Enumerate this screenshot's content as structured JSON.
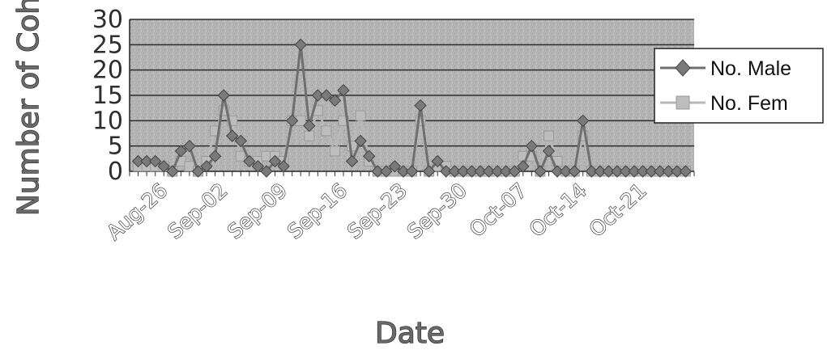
{
  "chart_data": {
    "type": "line",
    "xlabel": "Date",
    "ylabel": "Number of Coho",
    "ylim": [
      0,
      30
    ],
    "yticks": [
      "0",
      "5",
      "10",
      "15",
      "20",
      "25",
      "30"
    ],
    "xlim": [
      "2023-08-22",
      "2023-10-27"
    ],
    "xtick_labels": [
      {
        "date": "2023-08-26",
        "label": "Aug-26"
      },
      {
        "date": "2023-09-02",
        "label": "Sep-02"
      },
      {
        "date": "2023-09-09",
        "label": "Sep-09"
      },
      {
        "date": "2023-09-16",
        "label": "Sep-16"
      },
      {
        "date": "2023-09-23",
        "label": "Sep-23"
      },
      {
        "date": "2023-09-30",
        "label": "Sep-30"
      },
      {
        "date": "2023-10-07",
        "label": "Oct-07"
      },
      {
        "date": "2023-10-14",
        "label": "Oct-14"
      },
      {
        "date": "2023-10-21",
        "label": "Oct-21"
      }
    ],
    "grid": true,
    "legend_position": "right",
    "x": [
      "2023-08-23",
      "2023-08-24",
      "2023-08-25",
      "2023-08-26",
      "2023-08-27",
      "2023-08-28",
      "2023-08-29",
      "2023-08-30",
      "2023-08-31",
      "2023-09-01",
      "2023-09-02",
      "2023-09-03",
      "2023-09-04",
      "2023-09-05",
      "2023-09-06",
      "2023-09-07",
      "2023-09-08",
      "2023-09-09",
      "2023-09-10",
      "2023-09-11",
      "2023-09-12",
      "2023-09-13",
      "2023-09-14",
      "2023-09-15",
      "2023-09-16",
      "2023-09-17",
      "2023-09-18",
      "2023-09-19",
      "2023-09-20",
      "2023-09-21",
      "2023-09-22",
      "2023-09-23",
      "2023-09-24",
      "2023-09-25",
      "2023-09-26",
      "2023-09-27",
      "2023-09-28",
      "2023-09-29",
      "2023-09-30",
      "2023-10-01",
      "2023-10-02",
      "2023-10-03",
      "2023-10-04",
      "2023-10-05",
      "2023-10-06",
      "2023-10-07",
      "2023-10-08",
      "2023-10-09",
      "2023-10-10",
      "2023-10-11",
      "2023-10-12",
      "2023-10-13",
      "2023-10-14",
      "2023-10-15",
      "2023-10-16",
      "2023-10-17",
      "2023-10-18",
      "2023-10-19",
      "2023-10-20",
      "2023-10-21",
      "2023-10-22",
      "2023-10-23",
      "2023-10-24",
      "2023-10-25",
      "2023-10-26"
    ],
    "series": [
      {
        "name": "No. Male",
        "color": "#6f6f6f",
        "marker": "diamond",
        "values": [
          2,
          2,
          2,
          1,
          0,
          4,
          5,
          0,
          1,
          3,
          15,
          7,
          6,
          2,
          1,
          0,
          2,
          1,
          10,
          25,
          9,
          15,
          15,
          14,
          16,
          2,
          6,
          3,
          0,
          0,
          1,
          0,
          0,
          13,
          0,
          2,
          0,
          0,
          0,
          0,
          0,
          0,
          0,
          0,
          0,
          1,
          5,
          0,
          4,
          0,
          0,
          0,
          10,
          0,
          0,
          0,
          0,
          0,
          0,
          0,
          0,
          0,
          0,
          0,
          0
        ]
      },
      {
        "name": "No. Fem",
        "color": "#b8b8b8",
        "marker": "square",
        "values": [
          1,
          1,
          1,
          1,
          0,
          2,
          1,
          0,
          2,
          8,
          12,
          10,
          3,
          2,
          2,
          3,
          3,
          2,
          10,
          10,
          7,
          12,
          8,
          4,
          10,
          5,
          11,
          2,
          0,
          0,
          0,
          0,
          0,
          10,
          0,
          1,
          1,
          0,
          0,
          0,
          0,
          0,
          0,
          0,
          0,
          3,
          3,
          0,
          7,
          2,
          0,
          0,
          7,
          0,
          0,
          0,
          0,
          0,
          0,
          0,
          0,
          0,
          0,
          0,
          0
        ]
      }
    ]
  }
}
